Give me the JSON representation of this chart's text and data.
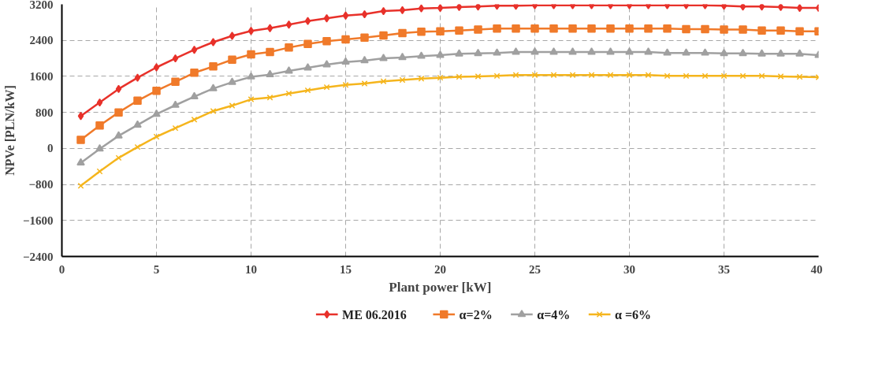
{
  "chart_data": {
    "type": "line",
    "xlabel": "Plant power [kW]",
    "ylabel": "NPVe [PLN/kW]",
    "x": [
      1,
      2,
      3,
      4,
      5,
      6,
      7,
      8,
      9,
      10,
      11,
      12,
      13,
      14,
      15,
      16,
      17,
      18,
      19,
      20,
      21,
      22,
      23,
      24,
      25,
      26,
      27,
      28,
      29,
      30,
      31,
      32,
      33,
      34,
      35,
      36,
      37,
      38,
      39,
      40
    ],
    "series": [
      {
        "name": "ME 06.2016",
        "color": "#e8312a",
        "marker": "diamond",
        "values": [
          720,
          1020,
          1320,
          1570,
          1800,
          2000,
          2190,
          2360,
          2500,
          2610,
          2670,
          2750,
          2830,
          2890,
          2950,
          2980,
          3050,
          3070,
          3110,
          3120,
          3140,
          3150,
          3170,
          3170,
          3180,
          3180,
          3180,
          3180,
          3180,
          3180,
          3180,
          3180,
          3180,
          3180,
          3170,
          3150,
          3150,
          3140,
          3120,
          3120
        ]
      },
      {
        "name": "α=2%",
        "color": "#f07a2a",
        "marker": "square",
        "values": [
          190,
          510,
          800,
          1060,
          1280,
          1480,
          1680,
          1820,
          1970,
          2090,
          2140,
          2240,
          2320,
          2380,
          2420,
          2460,
          2510,
          2560,
          2590,
          2600,
          2620,
          2640,
          2660,
          2660,
          2660,
          2660,
          2660,
          2660,
          2660,
          2660,
          2660,
          2660,
          2650,
          2650,
          2640,
          2640,
          2620,
          2620,
          2600,
          2600
        ]
      },
      {
        "name": "α=4%",
        "color": "#a0a0a0",
        "marker": "triangle",
        "values": [
          -320,
          -10,
          280,
          520,
          760,
          960,
          1150,
          1330,
          1470,
          1590,
          1640,
          1720,
          1790,
          1860,
          1920,
          1950,
          2000,
          2020,
          2050,
          2070,
          2100,
          2110,
          2120,
          2140,
          2140,
          2140,
          2140,
          2140,
          2140,
          2140,
          2140,
          2120,
          2120,
          2120,
          2110,
          2110,
          2100,
          2100,
          2100,
          2070
        ]
      },
      {
        "name": "α =6%",
        "color": "#f5b51d",
        "marker": "x",
        "values": [
          -830,
          -510,
          -210,
          30,
          260,
          450,
          640,
          830,
          950,
          1090,
          1130,
          1220,
          1290,
          1360,
          1410,
          1440,
          1490,
          1520,
          1550,
          1570,
          1590,
          1600,
          1610,
          1630,
          1630,
          1630,
          1630,
          1630,
          1630,
          1630,
          1630,
          1610,
          1610,
          1610,
          1610,
          1610,
          1610,
          1600,
          1590,
          1580
        ]
      }
    ],
    "xlim": [
      0,
      40
    ],
    "xticks": [
      0,
      5,
      10,
      15,
      20,
      25,
      30,
      35,
      40
    ],
    "ylim": [
      -2400,
      3200
    ],
    "yticks": [
      -2400,
      -1600,
      -800,
      0,
      800,
      1600,
      2400,
      3200
    ],
    "grid": true,
    "legend": "bottom"
  }
}
